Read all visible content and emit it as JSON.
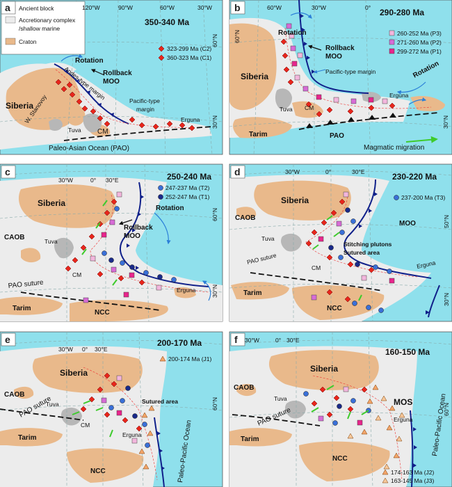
{
  "colors": {
    "ocean": "#8fe0ec",
    "accretion": "#ececec",
    "craton": "#e9b98b",
    "block": "#b7b7b7",
    "trench": "#10208a",
    "c1": "#e8251b",
    "c2": "#e8251b",
    "p1": "#e8258c",
    "p2": "#d76bd6",
    "p3": "#f3b6dd",
    "t1": "#1a2a8a",
    "t2": "#3a70d8",
    "t3": "#3a70d8",
    "j1": "#f3a56a",
    "j2": "#f3a56a",
    "j3": "#f7c89a",
    "arrow": "#2b7fd8",
    "green": "#3ecb2c"
  },
  "legend": {
    "ancient_block": "Ancient block",
    "accretionary_1": "Accretionary complex",
    "accretionary_2": "/shallow marine",
    "craton": "Craton"
  },
  "panels": {
    "a": {
      "letter": "a",
      "age": "350-340 Ma",
      "lon_120w": "120°W",
      "lon_90w": "90°W",
      "lon_60w": "60°W",
      "lon_30w": "30°W",
      "lat_60n": "60°N",
      "lat_30n": "30°N",
      "legend_c2": "323-299 Ma (C2)",
      "legend_c1": "360-323 Ma (C1)",
      "rotation": "Rotation",
      "rollback_1": "Rollback",
      "rollback_2": "MOO",
      "andes": "Andes-type margin",
      "pacific_1": "Pacific-type",
      "pacific_2": "margin",
      "siberia": "Siberia",
      "w_stanovoy": "W. Stanovoy",
      "tuva": "Tuva",
      "cm": "CM",
      "erguna": "Erguna",
      "pao": "Paleo-Asian Ocean (PAO)"
    },
    "b": {
      "letter": "b",
      "age": "290-280 Ma",
      "lon_60w": "60°W",
      "lon_30w": "30°W",
      "lon_0": "0°",
      "lat_60n": "60°N",
      "lat_30n": "30°N",
      "legend_p3": "260-252 Ma (P3)",
      "legend_p2": "271-260 Ma (P2)",
      "legend_p1": "299-272 Ma (P1)",
      "rotation_top": "Rotation",
      "rotation_right": "Rotation",
      "rollback_1": "Rollback",
      "rollback_2": "MOO",
      "pacific": "Pacific-type margin",
      "siberia": "Siberia",
      "tuva": "Tuva",
      "cm": "CM",
      "erguna": "Erguna",
      "tarim": "Tarim",
      "pao": "PAO",
      "migration": "Magmatic migration"
    },
    "c": {
      "letter": "c",
      "age": "250-240 Ma",
      "lon_30w": "30°W",
      "lon_0": "0°",
      "lon_30e": "30°E",
      "lat_60n": "60°N",
      "lat_30n": "30°N",
      "legend_t2": "247-237 Ma (T2)",
      "legend_t1": "252-247 Ma (T1)",
      "rotation": "Rotation",
      "rollback_1": "Rollback",
      "rollback_2": "MOO",
      "siberia": "Siberia",
      "caob": "CAOB",
      "tuva": "Tuva",
      "cm": "CM",
      "erguna": "Erguna",
      "pao_suture": "PAO suture",
      "tarim": "Tarim",
      "ncc": "NCC"
    },
    "d": {
      "letter": "d",
      "age": "230-220 Ma",
      "lon_30w": "30°W",
      "lon_0": "0°",
      "lon_30e": "30°E",
      "lat_50n": "50°N",
      "lat_30n": "30°N",
      "legend_t3": "237-200 Ma (T3)",
      "siberia": "Siberia",
      "caob": "CAOB",
      "moo": "MOO",
      "stitching": "Stitching plutons",
      "sutured": "Sutured area",
      "tuva": "Tuva",
      "cm": "CM",
      "erguna": "Erguna",
      "pao_suture": "PAO suture",
      "tarim": "Tarim",
      "ncc": "NCC"
    },
    "e": {
      "letter": "e",
      "age": "200-170 Ma",
      "lon_30w": "30°W",
      "lon_0": "0°",
      "lon_30e": "30°E",
      "lat_60n": "60°N",
      "legend_j1": "200-174 Ma (J1)",
      "siberia": "Siberia",
      "caob": "CAOB",
      "tuva": "Tuva",
      "sutured": "Sutured area",
      "cm": "CM",
      "pao_suture": "PAO suture",
      "erguna": "Erguna",
      "tarim": "Tarim",
      "ncc": "NCC",
      "paleo_pacific": "Paleo-Pacific Ocean"
    },
    "f": {
      "letter": "f",
      "age": "160-150 Ma",
      "lon_30w": "30°W",
      "lon_0": "0°",
      "lon_30e": "30°E",
      "lat_60n": "60°N",
      "siberia": "Siberia",
      "caob": "CAOB",
      "tuva": "Tuva",
      "mos": "MOS",
      "pao_suture": "PAO suture",
      "erguna": "Erguna",
      "tarim": "Tarim",
      "ncc": "NCC",
      "paleo_pacific": "Paleo-Pacific Ocean",
      "legend_j2": "174-163 Ma (J2)",
      "legend_j3": "163-145 Ma (J3)"
    }
  }
}
